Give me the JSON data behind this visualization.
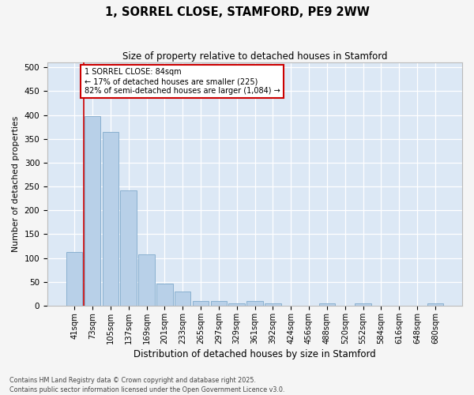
{
  "title": "1, SORREL CLOSE, STAMFORD, PE9 2WW",
  "subtitle": "Size of property relative to detached houses in Stamford",
  "xlabel": "Distribution of detached houses by size in Stamford",
  "ylabel": "Number of detached properties",
  "categories": [
    "41sqm",
    "73sqm",
    "105sqm",
    "137sqm",
    "169sqm",
    "201sqm",
    "233sqm",
    "265sqm",
    "297sqm",
    "329sqm",
    "361sqm",
    "392sqm",
    "424sqm",
    "456sqm",
    "488sqm",
    "520sqm",
    "552sqm",
    "584sqm",
    "616sqm",
    "648sqm",
    "680sqm"
  ],
  "values": [
    112,
    397,
    365,
    242,
    108,
    47,
    30,
    10,
    10,
    5,
    10,
    5,
    0,
    0,
    5,
    0,
    5,
    0,
    0,
    0,
    5
  ],
  "bar_color": "#b8d0e8",
  "bar_edge_color": "#8ab0d0",
  "plot_bg_color": "#dce8f5",
  "fig_bg_color": "#f5f5f5",
  "grid_color": "#ffffff",
  "red_line_x": 1,
  "annotation_text": "1 SORREL CLOSE: 84sqm\n← 17% of detached houses are smaller (225)\n82% of semi-detached houses are larger (1,084) →",
  "annotation_box_color": "#ffffff",
  "annotation_box_edge": "#cc0000",
  "footer_text": "Contains HM Land Registry data © Crown copyright and database right 2025.\nContains public sector information licensed under the Open Government Licence v3.0.",
  "ylim": [
    0,
    510
  ],
  "yticks": [
    0,
    50,
    100,
    150,
    200,
    250,
    300,
    350,
    400,
    450,
    500
  ]
}
